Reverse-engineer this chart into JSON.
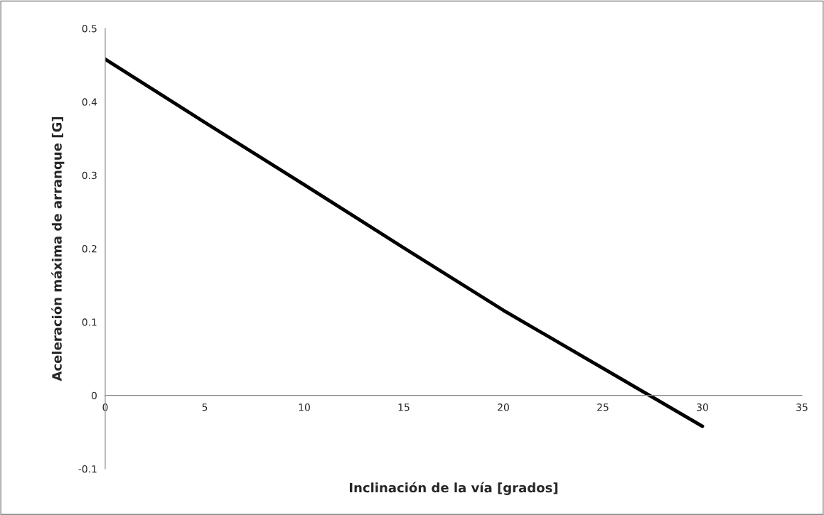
{
  "chart_data": {
    "type": "line",
    "xlabel": "Inclinación de la vía [grados]",
    "ylabel": "Aceleración máxima de arranque [G]",
    "x": [
      0,
      5,
      10,
      15,
      20,
      25,
      30
    ],
    "series": [
      {
        "color": "#000000",
        "values": [
          0.458,
          0.372,
          0.287,
          0.201,
          0.116,
          0.037,
          -0.042
        ]
      }
    ],
    "xlim": [
      0,
      35
    ],
    "xticks": [
      0,
      5,
      10,
      15,
      20,
      25,
      30,
      35
    ],
    "ylim": [
      -0.1,
      0.5
    ],
    "yticks": [
      -0.1,
      0,
      0.1,
      0.2,
      0.3,
      0.4,
      0.5
    ],
    "grid": false,
    "legend": false,
    "marker": "none",
    "line_style": "solid"
  }
}
